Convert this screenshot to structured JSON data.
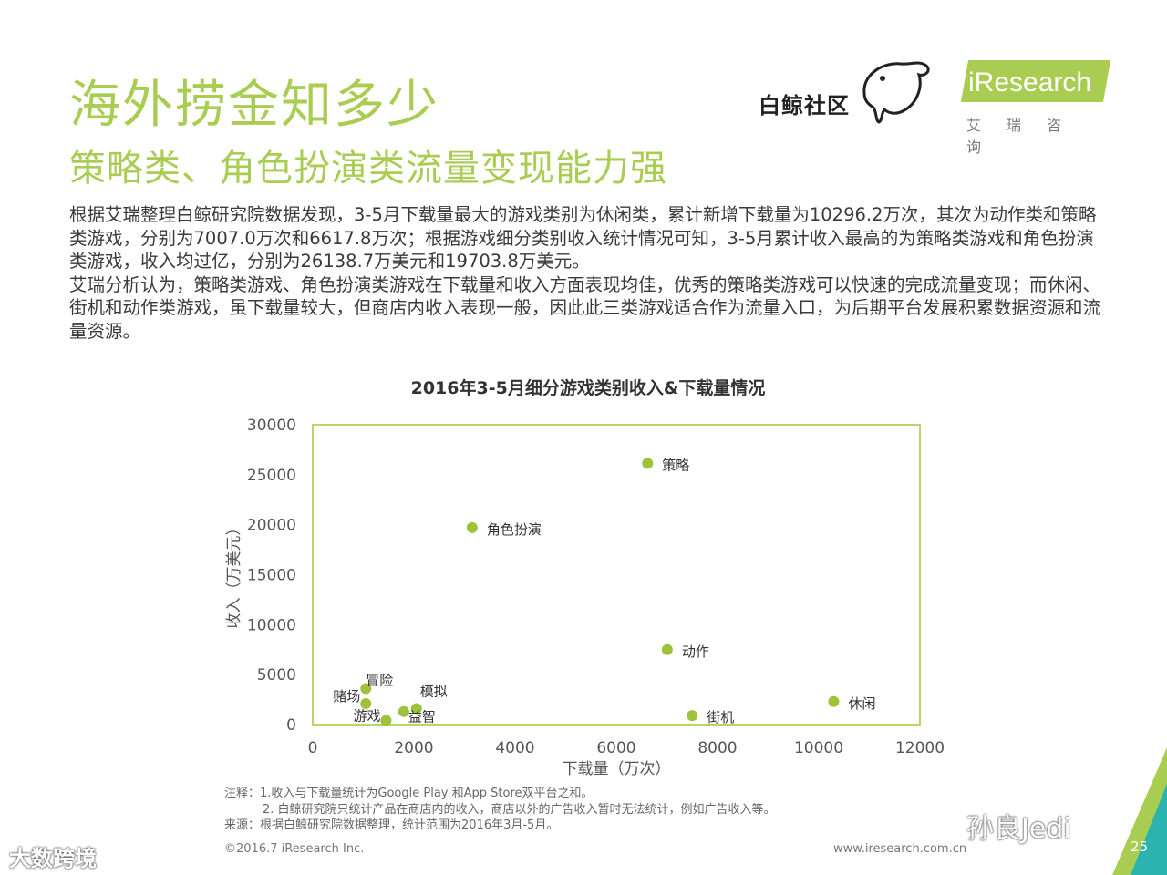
{
  "header": {
    "title": "海外捞金知多少",
    "subtitle": "策略类、角色扮演类流量变现能力强"
  },
  "logos": {
    "baijing_text": "白鲸社区",
    "iresearch_text": "iResearch",
    "iresearch_sub": "艾瑞咨询"
  },
  "body": {
    "p1": "根据艾瑞整理白鲸研究院数据发现，3-5月下载量最大的游戏类别为休闲类，累计新增下载量为10296.2万次，其次为动作类和策略类游戏，分别为7007.0万次和6617.8万次；根据游戏细分类别收入统计情况可知，3-5月累计收入最高的为策略类游戏和角色扮演类游戏，收入均过亿，分别为26138.7万美元和19703.8万美元。",
    "p2": "艾瑞分析认为，策略类游戏、角色扮演类游戏在下载量和收入方面表现均佳，优秀的策略类游戏可以快速的完成流量变现；而休闲、街机和动作类游戏，虽下载量较大，但商店内收入表现一般，因此此三类游戏适合作为流量入口，为后期平台发展积累数据资源和流量资源。"
  },
  "chart_data": {
    "type": "scatter",
    "title": "2016年3-5月细分游戏类别收入&下载量情况",
    "xlabel": "下载量（万次）",
    "ylabel": "收入（万美元）",
    "xlim": [
      0,
      12000
    ],
    "ylim": [
      0,
      30000
    ],
    "xticks": [
      0,
      2000,
      4000,
      6000,
      8000,
      10000,
      12000
    ],
    "yticks": [
      0,
      5000,
      10000,
      15000,
      20000,
      25000,
      30000
    ],
    "grid": false,
    "point_color": "#9ec23a",
    "frame_color": "#b7d66a",
    "points": [
      {
        "label": "策略",
        "x": 6617.8,
        "y": 26138.7
      },
      {
        "label": "角色扮演",
        "x": 3150,
        "y": 19703.8
      },
      {
        "label": "动作",
        "x": 7007.0,
        "y": 7500
      },
      {
        "label": "休闲",
        "x": 10296.2,
        "y": 2300
      },
      {
        "label": "街机",
        "x": 7500,
        "y": 900
      },
      {
        "label": "冒险",
        "x": 1050,
        "y": 3600
      },
      {
        "label": "赌场",
        "x": 1050,
        "y": 2100
      },
      {
        "label": "游戏",
        "x": 1450,
        "y": 400
      },
      {
        "label": "模拟",
        "x": 2050,
        "y": 1600
      },
      {
        "label": "益智",
        "x": 1800,
        "y": 1300
      }
    ]
  },
  "footnotes": {
    "note1": "注释：1.收入与下载量统计为Google Play 和App Store双平台之和。",
    "note2": "2. 白鲸研究院只统计产品在商店内的收入，商店以外的广告收入暂时无法统计，例如广告收入等。",
    "source": "来源：根据白鲸研究院数据整理，统计范围为2016年3月-5月。"
  },
  "footer": {
    "copyright": "©2016.7 iResearch Inc.",
    "website": "www.iresearch.com.cn",
    "page": "25"
  },
  "watermarks": {
    "left": "大数跨境",
    "right": "孙良Jedi"
  }
}
